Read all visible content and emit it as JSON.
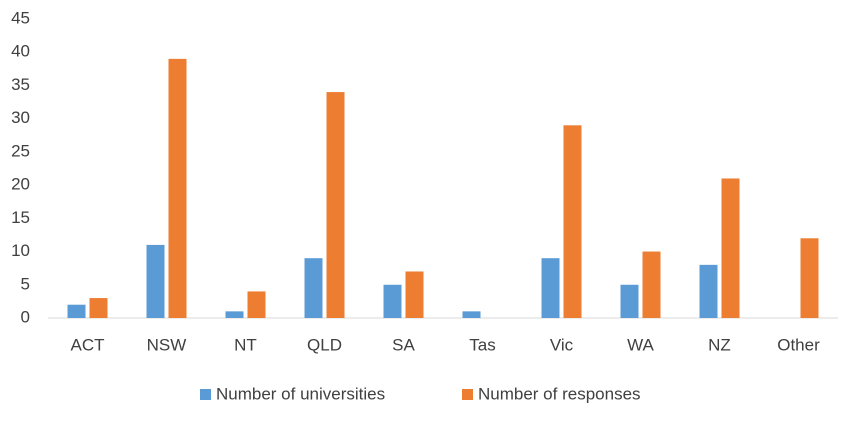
{
  "chart_data": {
    "type": "bar",
    "categories": [
      "ACT",
      "NSW",
      "NT",
      "QLD",
      "SA",
      "Tas",
      "Vic",
      "WA",
      "NZ",
      "Other"
    ],
    "series": [
      {
        "name": "Number of universities",
        "color": "#5b9bd5",
        "values": [
          2,
          11,
          1,
          9,
          5,
          1,
          9,
          5,
          8,
          0
        ]
      },
      {
        "name": "Number of responses",
        "color": "#ed7d31",
        "values": [
          3,
          39,
          4,
          34,
          7,
          0,
          29,
          10,
          21,
          12
        ]
      }
    ],
    "ylim": [
      0,
      45
    ],
    "yticks": [
      0,
      5,
      10,
      15,
      20,
      25,
      30,
      35,
      40,
      45
    ],
    "grid": false,
    "legend": "bottom"
  }
}
